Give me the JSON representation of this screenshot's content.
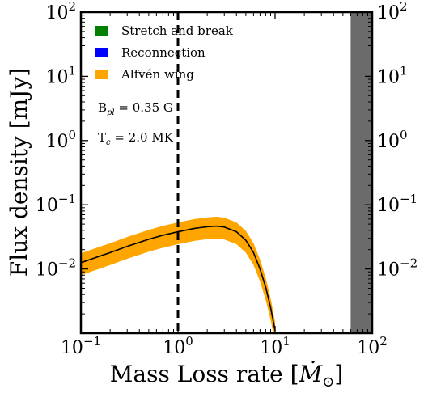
{
  "chart_data": {
    "type": "line",
    "title": "",
    "xlabel": "Mass Loss rate [",
    "xlabel_symbol": "Ṁ",
    "xlabel_sub": "⊙",
    "xlabel_close": "]",
    "ylabel": "Flux density [mJy]",
    "x_scale": "log",
    "y_scale": "log",
    "xlim": [
      0.1,
      100
    ],
    "ylim": [
      0.001,
      100
    ],
    "x_ticks": [
      {
        "value": 0.1,
        "base": "10",
        "exp": "−1"
      },
      {
        "value": 1,
        "base": "10",
        "exp": "0"
      },
      {
        "value": 10,
        "base": "10",
        "exp": "1"
      },
      {
        "value": 100,
        "base": "10",
        "exp": "2"
      }
    ],
    "y_ticks": [
      {
        "value": 0.01,
        "base": "10",
        "exp": "−2"
      },
      {
        "value": 0.1,
        "base": "10",
        "exp": "−1"
      },
      {
        "value": 1,
        "base": "10",
        "exp": "0"
      },
      {
        "value": 10,
        "base": "10",
        "exp": "1"
      },
      {
        "value": 100,
        "base": "10",
        "exp": "2"
      }
    ],
    "legend": {
      "placement": "top-left",
      "entries": [
        {
          "label": "Stretch and break",
          "color": "#008000"
        },
        {
          "label": "Reconnection",
          "color": "#0000ff"
        },
        {
          "label": "Alfvén wing",
          "color": "#ffa500"
        }
      ]
    },
    "annotations": [
      {
        "main": "B",
        "sub": "pl",
        "rest": " = 0.35 G"
      },
      {
        "main": "T",
        "sub": "c",
        "rest": " = 2.0 MK"
      }
    ],
    "series": [
      {
        "name": "Alfvén wing",
        "color": "#000000",
        "band_color": "#ffa500",
        "x": [
          0.1,
          0.15,
          0.2,
          0.3,
          0.5,
          0.7,
          1.0,
          1.5,
          2.0,
          2.5,
          3.0,
          4.0,
          5.0,
          6.0,
          7.0,
          8.0,
          9.0,
          10.0
        ],
        "y": [
          0.0125,
          0.0155,
          0.018,
          0.0225,
          0.029,
          0.0335,
          0.038,
          0.043,
          0.0455,
          0.0465,
          0.045,
          0.038,
          0.028,
          0.018,
          0.01,
          0.0052,
          0.0025,
          0.0011
        ],
        "y_low": [
          0.008,
          0.0099,
          0.0115,
          0.0144,
          0.0186,
          0.0214,
          0.0243,
          0.0275,
          0.0291,
          0.0298,
          0.0288,
          0.0243,
          0.0179,
          0.0115,
          0.0064,
          0.0033,
          0.0016,
          0.0007
        ],
        "y_high": [
          0.0175,
          0.0217,
          0.0252,
          0.0315,
          0.0406,
          0.0469,
          0.0532,
          0.0602,
          0.0637,
          0.0651,
          0.063,
          0.0532,
          0.0392,
          0.0252,
          0.014,
          0.0073,
          0.0035,
          0.0015
        ]
      }
    ],
    "vertical_line": {
      "x": 1.0,
      "style": "dashed",
      "color": "#000000"
    },
    "shaded_region": {
      "x_start": 60,
      "x_end": 100,
      "color": "#6b6b6b"
    }
  }
}
